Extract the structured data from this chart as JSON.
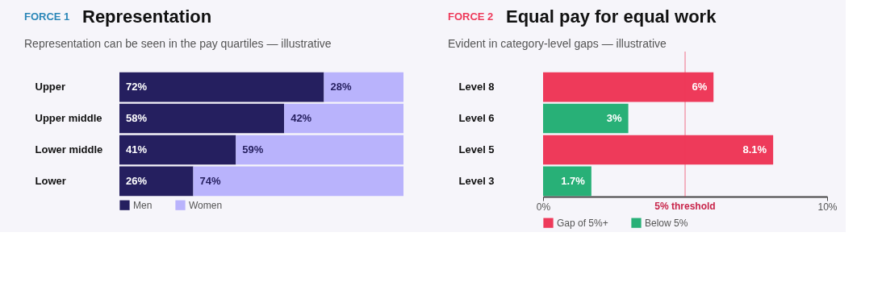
{
  "chart_data": [
    {
      "type": "bar",
      "orientation": "horizontal",
      "stacked": true,
      "annotations": [
        "FORCE 1"
      ],
      "title": "Representation",
      "subtitle": "Representation can be seen in the pay quartiles — illustrative",
      "categories": [
        "Upper",
        "Upper middle",
        "Lower middle",
        "Lower"
      ],
      "series": [
        {
          "name": "Men",
          "color": "#251f5f",
          "values": [
            72,
            58,
            41,
            26
          ],
          "value_labels": [
            "72%",
            "58%",
            "41%",
            "26%"
          ]
        },
        {
          "name": "Women",
          "color": "#b9b3fc",
          "values": [
            28,
            42,
            59,
            74
          ],
          "value_labels": [
            "28%",
            "42%",
            "59%",
            "74%"
          ]
        }
      ],
      "legend": "bottom left",
      "tick_labels": "y"
    },
    {
      "type": "bar",
      "orientation": "horizontal",
      "annotations": [
        "FORCE 2"
      ],
      "title": "Equal pay for equal work",
      "subtitle": "Evident in category-level gaps — illustrative",
      "categories": [
        "Level 8",
        "Level 6",
        "Level 5",
        "Level 3"
      ],
      "series": [
        {
          "name": "Gap of 5%+",
          "color": "#ee3a5a",
          "values": [
            6,
            null,
            8.1,
            null
          ],
          "value_labels": [
            "6%",
            null,
            "8.1%",
            null
          ]
        },
        {
          "name": "Below 5%",
          "color": "#28b077",
          "values": [
            null,
            3,
            null,
            1.7
          ],
          "value_labels": [
            null,
            "3%",
            null,
            "1.7%"
          ]
        }
      ],
      "xlim": [
        0,
        10
      ],
      "xticks": [
        {
          "value": 0,
          "label": "0%"
        },
        {
          "value": 10,
          "label": "10%"
        }
      ],
      "ref_lines": [
        {
          "axis": "x",
          "value": 5,
          "label": "5% threshold",
          "color": "#ee3a5a"
        }
      ],
      "legend": "bottom left"
    }
  ]
}
